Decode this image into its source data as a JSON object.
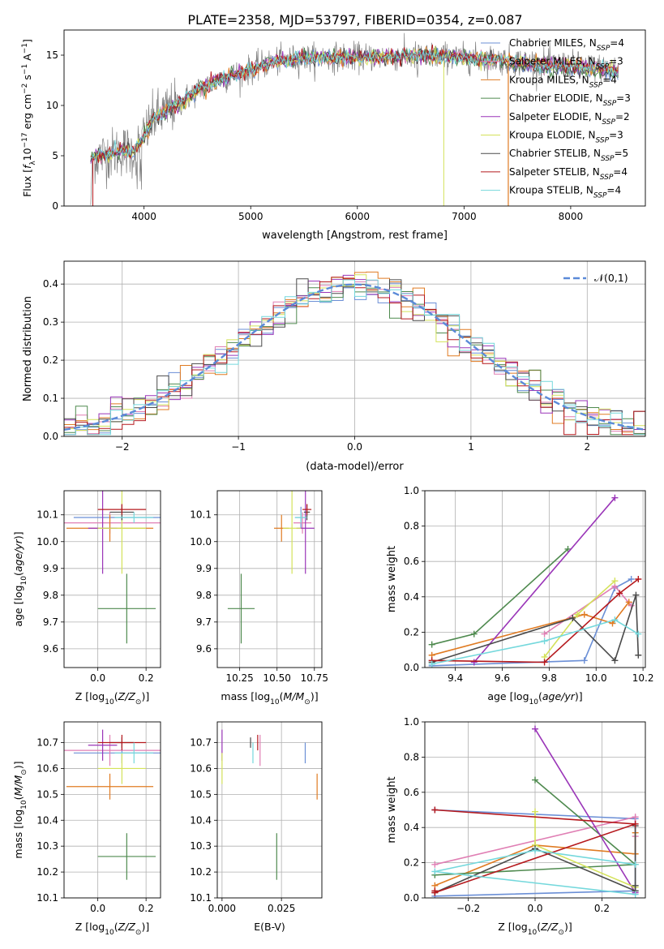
{
  "title": "PLATE=2358, MJD=53797, FIBERID=0354, z=0.087",
  "colors": {
    "Chabrier MILES": "#6b8fd6",
    "Salpeter MILES": "#e07fb4",
    "Kroupa MILES": "#e07b22",
    "Chabrier ELODIE": "#4f8a4f",
    "Salpeter ELODIE": "#9a35b8",
    "Kroupa ELODIE": "#d4e25a",
    "Chabrier STELIB": "#4a4a4a",
    "Salpeter STELIB": "#b5191d",
    "Kroupa STELIB": "#74d8dc",
    "data": "#808080",
    "normal": "#5b8ad8"
  },
  "chart_data": [
    {
      "id": "spectrum",
      "type": "line",
      "title": "PLATE=2358, MJD=53797, FIBERID=0354, z=0.087",
      "xlabel": "wavelength [Angstrom, rest frame]",
      "ylabel": "Flux [f_λ10^-17 erg cm^-2 s^-1 A^-1]",
      "xlim": [
        3250,
        8700
      ],
      "ylim": [
        0,
        17.5
      ],
      "xticks": [
        4000,
        5000,
        6000,
        7000,
        8000
      ],
      "yticks": [
        0,
        5,
        10,
        15
      ],
      "grid": false,
      "legend_position": "top-right",
      "legend": [
        "Chabrier MILES, N_SSP=4",
        "Salpeter MILES, N_SSP=3",
        "Kroupa MILES, N_SSP=4",
        "Chabrier ELODIE, N_SSP=3",
        "Salpeter ELODIE, N_SSP=2",
        "Kroupa ELODIE, N_SSP=3",
        "Chabrier STELIB, N_SSP=5",
        "Salpeter STELIB, N_SSP=4",
        "Kroupa STELIB, N_SSP=4"
      ],
      "continuum": {
        "wavelength": [
          3500,
          3700,
          3800,
          3900,
          4000,
          4100,
          4300,
          4500,
          4700,
          4900,
          5200,
          5500,
          5800,
          6100,
          6300,
          6600,
          6800,
          7000,
          7200,
          7400,
          7600,
          7800,
          8000,
          8200,
          8450
        ],
        "flux": [
          4.8,
          5.2,
          5.6,
          5.3,
          7.0,
          8.8,
          10.0,
          11.5,
          12.5,
          13.2,
          14.3,
          14.7,
          14.8,
          14.8,
          14.9,
          14.9,
          14.9,
          14.7,
          14.6,
          14.5,
          14.3,
          14.1,
          14.0,
          13.8,
          13.5
        ]
      }
    },
    {
      "id": "residuals",
      "type": "bar",
      "xlabel": "(data-model)/error",
      "ylabel": "Normed distribution",
      "xlim": [
        -2.5,
        2.5
      ],
      "ylim": [
        0,
        0.46
      ],
      "xticks": [
        -2,
        -1,
        0,
        1,
        2
      ],
      "yticks": [
        0.0,
        0.1,
        0.2,
        0.3,
        0.4
      ],
      "grid": true,
      "legend_position": "top-right",
      "legend": [
        "𝒩(0,1)"
      ],
      "bin_width": 0.1
    },
    {
      "id": "age-vs-Z",
      "type": "scatter",
      "xlabel": "Z [log10(Z/Z⊙)]",
      "ylabel": "age  [log10(age/yr)]",
      "xlim": [
        -0.14,
        0.26
      ],
      "ylim": [
        9.53,
        10.19
      ],
      "xticks": [
        0.0,
        0.2
      ],
      "yticks": [
        9.6,
        9.7,
        9.8,
        9.9,
        10.0,
        10.1
      ],
      "grid": true
    },
    {
      "id": "age-vs-mass",
      "type": "scatter",
      "xlabel": "mass [log10(M/M⊙)]",
      "ylabel": "",
      "xlim": [
        10.1,
        10.8
      ],
      "ylim": [
        9.53,
        10.19
      ],
      "xticks": [
        10.25,
        10.5,
        10.75
      ],
      "yticks": [
        9.6,
        9.7,
        9.8,
        9.9,
        10.0,
        10.1
      ],
      "grid": true
    },
    {
      "id": "weight-vs-age",
      "type": "line",
      "xlabel": "age  [log10(age/yr)]",
      "ylabel": "mass weight",
      "xlim": [
        9.27,
        10.21
      ],
      "ylim": [
        0,
        1.0
      ],
      "xticks": [
        9.4,
        9.6,
        9.8,
        10.0,
        10.2
      ],
      "yticks": [
        0.0,
        0.2,
        0.4,
        0.6,
        0.8,
        1.0
      ],
      "grid": true
    },
    {
      "id": "mass-vs-Z",
      "type": "scatter",
      "xlabel": "Z [log10(Z/Z⊙)]",
      "ylabel": "mass [log10(M/M⊙)]",
      "xlim": [
        -0.14,
        0.26
      ],
      "ylim": [
        10.1,
        10.78
      ],
      "xticks": [
        0.0,
        0.2
      ],
      "yticks": [
        10.1,
        10.2,
        10.3,
        10.4,
        10.5,
        10.6,
        10.7
      ],
      "grid": true
    },
    {
      "id": "mass-vs-ebv",
      "type": "scatter",
      "xlabel": "E(B-V)",
      "ylabel": "",
      "xlim": [
        -0.002,
        0.042
      ],
      "ylim": [
        10.1,
        10.78
      ],
      "xticks": [
        0.0,
        0.025
      ],
      "yticks": [
        10.1,
        10.2,
        10.3,
        10.4,
        10.5,
        10.6,
        10.7
      ],
      "grid": true
    },
    {
      "id": "weight-vs-Z",
      "type": "line",
      "xlabel": "Z [log10(Z/Z⊙)]",
      "ylabel": "mass weight",
      "xlim": [
        -0.33,
        0.33
      ],
      "ylim": [
        0,
        1.0
      ],
      "xticks": [
        -0.2,
        0.0,
        0.2
      ],
      "yticks": [
        0.0,
        0.2,
        0.4,
        0.6,
        0.8,
        1.0
      ],
      "grid": true
    }
  ],
  "fits": [
    {
      "key": "Chabrier MILES",
      "Z": [
        0.1,
        0.2
      ],
      "age": [
        10.09,
        0.04
      ],
      "mass": [
        10.66,
        0.04
      ],
      "ebv": 0.035,
      "ssp_age": [
        9.3,
        9.95,
        10.08,
        10.15
      ],
      "ssp_Z": [
        -0.3,
        0.3,
        0.3,
        -0.3
      ],
      "ssp_w": [
        0.01,
        0.04,
        0.45,
        0.5
      ]
    },
    {
      "key": "Salpeter MILES",
      "Z": [
        0.05,
        0.22
      ],
      "age": [
        10.07,
        0.04
      ],
      "mass": [
        10.67,
        0.06
      ],
      "ebv": 0.016,
      "ssp_age": [
        9.78,
        10.08,
        10.15
      ],
      "ssp_Z": [
        -0.3,
        0.3,
        0.3
      ],
      "ssp_w": [
        0.19,
        0.46,
        0.35
      ]
    },
    {
      "key": "Kroupa MILES",
      "Z": [
        0.05,
        0.18
      ],
      "age": [
        10.05,
        0.05
      ],
      "mass": [
        10.53,
        0.05
      ],
      "ebv": 0.04,
      "ssp_age": [
        9.3,
        9.95,
        10.07,
        10.14
      ],
      "ssp_Z": [
        -0.3,
        0.0,
        0.3,
        0.3
      ],
      "ssp_w": [
        0.07,
        0.3,
        0.25,
        0.37
      ]
    },
    {
      "key": "Chabrier ELODIE",
      "Z": [
        0.12,
        0.12
      ],
      "age": [
        9.75,
        0.13
      ],
      "mass": [
        10.26,
        0.09
      ],
      "ebv": 0.023,
      "ssp_age": [
        9.3,
        9.48,
        9.88
      ],
      "ssp_Z": [
        -0.3,
        0.3,
        0.0
      ],
      "ssp_w": [
        0.13,
        0.19,
        0.67
      ]
    },
    {
      "key": "Salpeter ELODIE",
      "Z": [
        0.02,
        0.06
      ],
      "age": [
        10.05,
        0.17
      ],
      "mass": [
        10.69,
        0.06
      ],
      "ebv": 0.0,
      "ssp_age": [
        9.48,
        10.08
      ],
      "ssp_Z": [
        0.3,
        0.0
      ],
      "ssp_w": [
        0.03,
        0.96
      ]
    },
    {
      "key": "Kroupa ELODIE",
      "Z": [
        0.1,
        0.1
      ],
      "age": [
        10.05,
        0.17
      ],
      "mass": [
        10.6,
        0.06
      ],
      "ebv": 0.0,
      "ssp_age": [
        9.78,
        9.92,
        10.08
      ],
      "ssp_Z": [
        0.3,
        0.0,
        0.0
      ],
      "ssp_w": [
        0.06,
        0.3,
        0.49
      ]
    },
    {
      "key": "Chabrier STELIB",
      "Z": [
        0.1,
        0.05
      ],
      "age": [
        10.11,
        0.03
      ],
      "mass": [
        10.7,
        0.02
      ],
      "ebv": 0.012,
      "ssp_age": [
        9.3,
        9.9,
        10.08,
        10.17,
        10.18
      ],
      "ssp_Z": [
        -0.3,
        0.0,
        0.3,
        0.3,
        0.3
      ],
      "ssp_w": [
        0.03,
        0.28,
        0.04,
        0.41,
        0.07
      ]
    },
    {
      "key": "Salpeter STELIB",
      "Z": [
        0.1,
        0.1
      ],
      "age": [
        10.12,
        0.02
      ],
      "mass": [
        10.7,
        0.03
      ],
      "ebv": 0.015,
      "ssp_age": [
        9.3,
        9.78,
        10.1,
        10.18
      ],
      "ssp_Z": [
        -0.3,
        -0.3,
        0.3,
        -0.3
      ],
      "ssp_w": [
        0.04,
        0.03,
        0.42,
        0.5
      ]
    },
    {
      "key": "Kroupa STELIB",
      "Z": [
        0.15,
        0.08
      ],
      "age": [
        10.09,
        0.02
      ],
      "mass": [
        10.66,
        0.04
      ],
      "ebv": 0.013,
      "ssp_age": [
        9.3,
        9.78,
        10.08,
        10.18
      ],
      "ssp_Z": [
        0.3,
        -0.3,
        0.0,
        0.3
      ],
      "ssp_w": [
        0.02,
        0.15,
        0.27,
        0.19
      ]
    }
  ]
}
